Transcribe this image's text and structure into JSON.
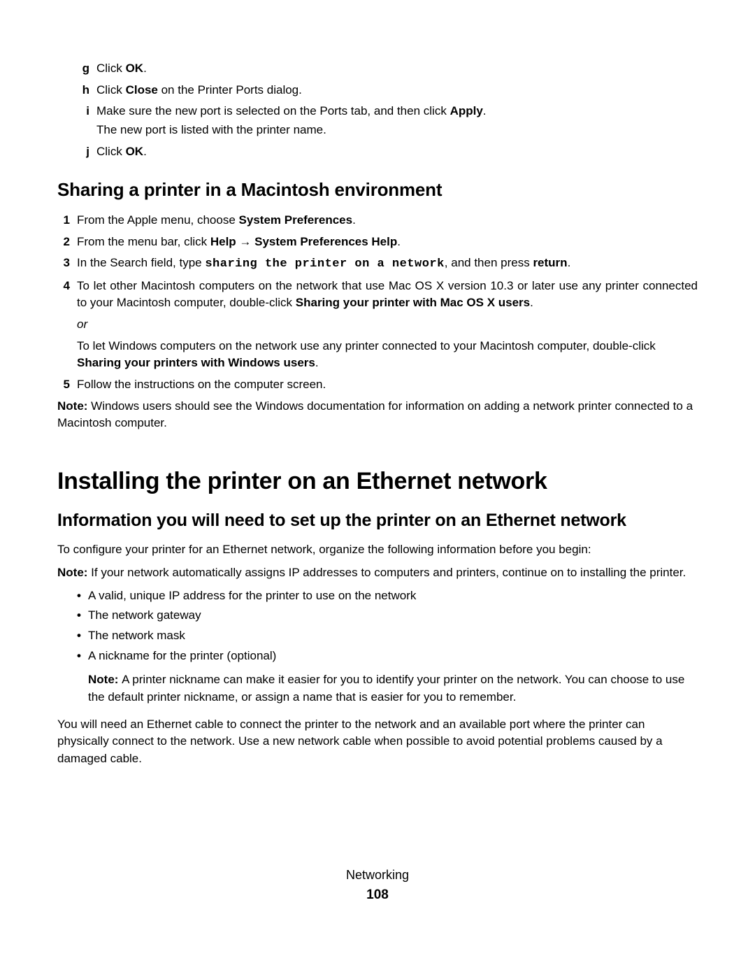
{
  "lettered_steps": [
    {
      "marker": "g",
      "text_before": "Click ",
      "bold": "OK",
      "text_after": "."
    },
    {
      "marker": "h",
      "text_before": "Click ",
      "bold": "Close",
      "text_after": " on the Printer Ports dialog."
    },
    {
      "marker": "i",
      "text_before": "Make sure the new port is selected on the Ports tab, and then click ",
      "bold": "Apply",
      "text_after": ".",
      "sub": "The new port is listed with the printer name."
    },
    {
      "marker": "j",
      "text_before": "Click ",
      "bold": "OK",
      "text_after": "."
    }
  ],
  "h2_mac": "Sharing a printer in a Macintosh environment",
  "mac_steps": {
    "s1": {
      "marker": "1",
      "before": "From the Apple menu, choose ",
      "bold": "System Preferences",
      "after": "."
    },
    "s2": {
      "marker": "2",
      "before": "From the menu bar, click ",
      "bold1": "Help",
      "arrow": " → ",
      "bold2": "System Preferences Help",
      "after": "."
    },
    "s3": {
      "marker": "3",
      "before": "In the Search field, type ",
      "mono": "sharing the printer on a network",
      "mid": ", and then press ",
      "bold": "return",
      "after": "."
    },
    "s4": {
      "marker": "4",
      "line1_before": "To let other Macintosh computers on the network that use Mac OS X version 10.3 or later use any printer connected to your Macintosh computer, double-click ",
      "line1_bold": "Sharing your printer with Mac OS X users",
      "line1_after": ".",
      "or": "or",
      "line2_before": "To let Windows computers on the network use any printer connected to your Macintosh computer, double-click ",
      "line2_bold": "Sharing your printers with Windows users",
      "line2_after": "."
    },
    "s5": {
      "marker": "5",
      "text": "Follow the instructions on the computer screen."
    }
  },
  "mac_note": {
    "label": "Note: ",
    "text": "Windows users should see the Windows documentation for information on adding a network printer connected to a Macintosh computer."
  },
  "h1_eth": "Installing the printer on an Ethernet network",
  "h3_eth": "Information you will need to set up the printer on an Ethernet network",
  "eth_intro": "To configure your printer for an Ethernet network, organize the following information before you begin:",
  "eth_note1": {
    "label": "Note: ",
    "text": "If your network automatically assigns IP addresses to computers and printers, continue on to installing the printer."
  },
  "eth_bullets": [
    "A valid, unique IP address for the printer to use on the network",
    "The network gateway",
    "The network mask",
    "A nickname for the printer (optional)"
  ],
  "eth_bullet_note": {
    "label": "Note: ",
    "text": "A printer nickname can make it easier for you to identify your printer on the network. You can choose to use the default printer nickname, or assign a name that is easier for you to remember."
  },
  "eth_outro": "You will need an Ethernet cable to connect the printer to the network and an available port where the printer can physically connect to the network. Use a new network cable when possible to avoid potential problems caused by a damaged cable.",
  "footer": {
    "section": "Networking",
    "page": "108"
  }
}
